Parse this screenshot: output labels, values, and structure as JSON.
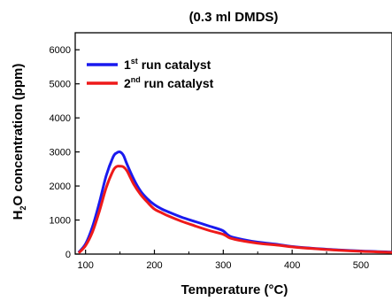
{
  "chart_data": {
    "type": "line",
    "title": "(0.3 ml DMDS)",
    "xlabel": "Temperature (°C)",
    "ylabel": "H2O concentration (ppm)",
    "xlim": [
      85,
      545
    ],
    "ylim": [
      0,
      6500
    ],
    "xticks": [
      100,
      200,
      300,
      400,
      500
    ],
    "yticks": [
      0,
      1000,
      2000,
      3000,
      4000,
      5000,
      6000
    ],
    "legend_position": "top-left",
    "series": [
      {
        "name": "1st run catalyst",
        "legend_base": "1",
        "legend_sup": "st",
        "legend_rest": " run catalyst",
        "color": "#1a1aee",
        "x": [
          90,
          100,
          110,
          120,
          130,
          140,
          145,
          150,
          155,
          160,
          170,
          180,
          190,
          200,
          210,
          220,
          240,
          260,
          280,
          290,
          300,
          310,
          330,
          350,
          380,
          400,
          430,
          460,
          500,
          545
        ],
        "y": [
          50,
          300,
          800,
          1500,
          2300,
          2850,
          2970,
          3000,
          2900,
          2650,
          2200,
          1850,
          1620,
          1450,
          1330,
          1240,
          1080,
          950,
          820,
          760,
          680,
          520,
          420,
          350,
          280,
          220,
          170,
          130,
          90,
          60
        ]
      },
      {
        "name": "2nd run catalyst",
        "legend_base": "2",
        "legend_sup": "nd",
        "legend_rest": " run catalyst",
        "color": "#ee1a1a",
        "x": [
          90,
          100,
          110,
          120,
          130,
          140,
          145,
          150,
          155,
          160,
          165,
          170,
          180,
          190,
          200,
          210,
          220,
          240,
          260,
          280,
          300,
          310,
          330,
          350,
          380,
          400,
          430,
          460,
          500,
          545
        ],
        "y": [
          30,
          250,
          650,
          1250,
          1950,
          2450,
          2570,
          2580,
          2560,
          2450,
          2250,
          2050,
          1750,
          1520,
          1320,
          1220,
          1120,
          960,
          820,
          690,
          580,
          470,
          380,
          320,
          260,
          210,
          160,
          120,
          80,
          50
        ]
      }
    ]
  }
}
